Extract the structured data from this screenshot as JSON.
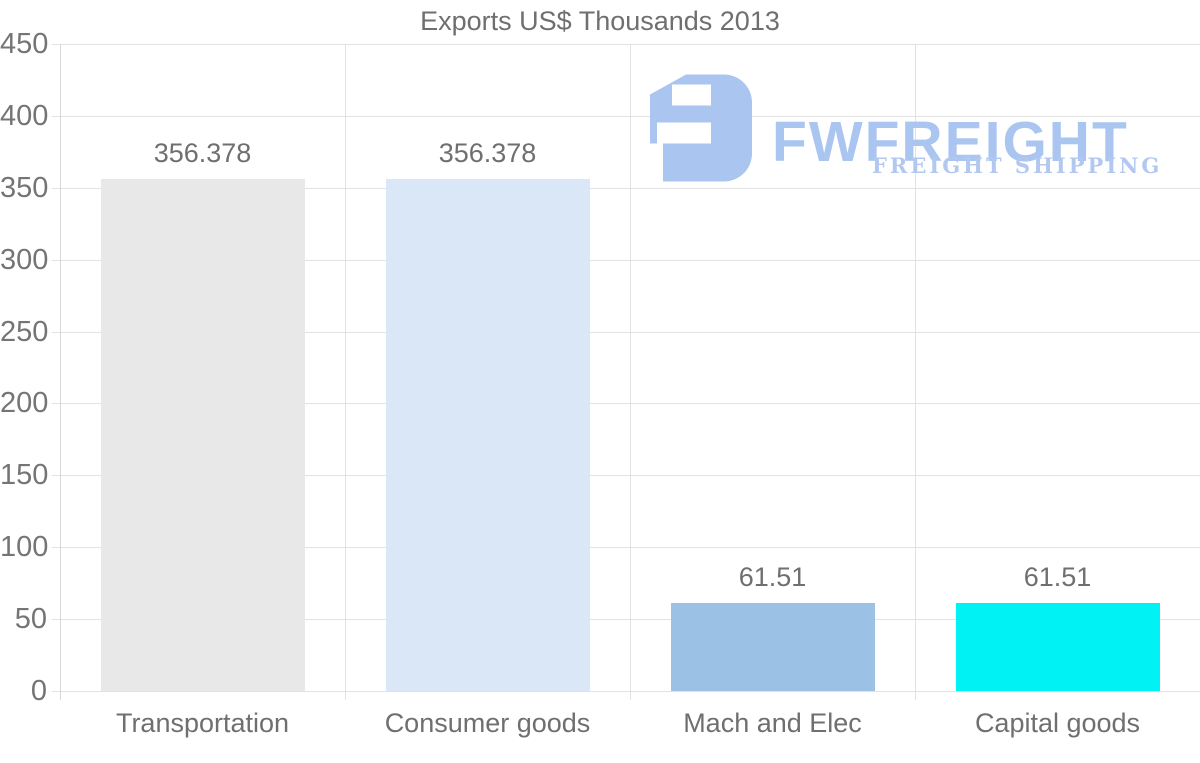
{
  "page": {
    "background": "#ffffff",
    "text_color": "#6f6f6f",
    "grid_color": "#e2e2e2",
    "axis_color": "#d8d8d8"
  },
  "chart_data": {
    "type": "bar",
    "title": "Exports US$ Thousands 2013",
    "categories": [
      "Transportation",
      "Consumer goods",
      "Mach and Elec",
      "Capital goods"
    ],
    "values": [
      356.378,
      356.378,
      61.51,
      61.51
    ],
    "value_labels": [
      "356.378",
      "356.378",
      "61.51",
      "61.51"
    ],
    "bar_colors": [
      "#e8e8e8",
      "#d9e7f6",
      "#9bc2e5",
      "#00f2f5"
    ],
    "xlabel": "",
    "ylabel": "",
    "ylim": [
      0,
      450
    ],
    "yticks": [
      0,
      50,
      100,
      150,
      200,
      250,
      300,
      350,
      400,
      450
    ],
    "grid": true,
    "legend_position": "none"
  },
  "watermark": {
    "brand": "FWFREIGHT",
    "tagline": "FREIGHT SHIPPING",
    "brand_color": "#a9c5f0",
    "tagline_color": "#b2c8f0",
    "icon_color": "#aac6f0",
    "icon": "fwfreight-logo-icon"
  }
}
